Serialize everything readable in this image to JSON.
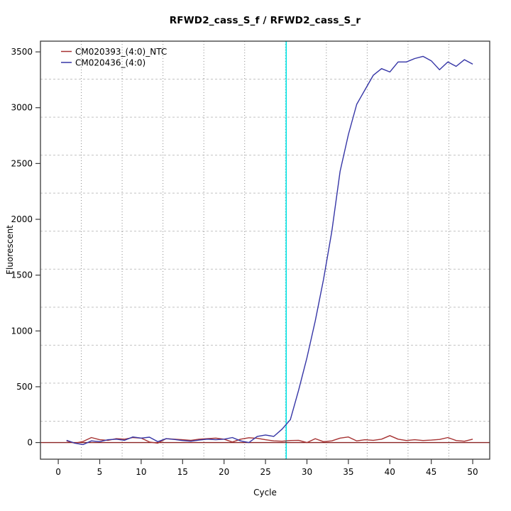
{
  "title": "RFWD2_cass_S_f / RFWD2_cass_S_r",
  "chart_data": {
    "type": "line",
    "title": "RFWD2_cass_S_f / RFWD2_cass_S_r",
    "xlabel": "Cycle",
    "ylabel": "Fluorescent",
    "xlim": [
      -2.15,
      52.05
    ],
    "ylim": [
      -149,
      3596
    ],
    "x_ticks": [
      0,
      5,
      10,
      15,
      20,
      25,
      30,
      35,
      40,
      45,
      50
    ],
    "y_ticks": [
      0,
      500,
      1000,
      1500,
      2000,
      2500,
      3000,
      3500
    ],
    "grid": {
      "nx": 11,
      "ny": 11,
      "v_color": "#8a8a8a",
      "h_color": "#c2c2c2"
    },
    "threshold_line": {
      "x": 27.5,
      "color": "#00e6e6"
    },
    "baseline": {
      "y": 0,
      "color": "#8b2323"
    },
    "axis_color": "#3a3a3a",
    "legend_position": "top-left",
    "x": [
      1,
      2,
      3,
      4,
      5,
      6,
      7,
      8,
      9,
      10,
      11,
      12,
      13,
      14,
      15,
      16,
      17,
      18,
      19,
      20,
      21,
      22,
      23,
      24,
      25,
      26,
      27,
      28,
      29,
      30,
      31,
      32,
      33,
      34,
      35,
      36,
      37,
      38,
      39,
      40,
      41,
      42,
      43,
      44,
      45,
      46,
      47,
      48,
      49,
      50
    ],
    "series": [
      {
        "name": "CM020393_(4:0)_NTC",
        "color": "#a63232",
        "values": [
          15,
          -5,
          10,
          45,
          25,
          20,
          35,
          30,
          45,
          40,
          5,
          -5,
          35,
          30,
          25,
          20,
          30,
          35,
          40,
          30,
          5,
          30,
          43,
          38,
          25,
          15,
          12,
          18,
          20,
          0,
          35,
          8,
          15,
          40,
          50,
          15,
          25,
          20,
          30,
          62,
          30,
          18,
          25,
          18,
          22,
          28,
          45,
          18,
          12,
          30
        ]
      },
      {
        "name": "CM020436_(4:0)",
        "color": "#3535a6",
        "values": [
          20,
          -5,
          -18,
          15,
          8,
          25,
          30,
          20,
          50,
          40,
          48,
          8,
          35,
          28,
          18,
          12,
          22,
          30,
          25,
          30,
          45,
          15,
          0,
          55,
          68,
          55,
          120,
          205,
          470,
          760,
          1090,
          1460,
          1890,
          2430,
          2760,
          3030,
          3160,
          3290,
          3350,
          3320,
          3410,
          3410,
          3440,
          3460,
          3420,
          3340,
          3410,
          3370,
          3430,
          3390
        ]
      }
    ]
  }
}
